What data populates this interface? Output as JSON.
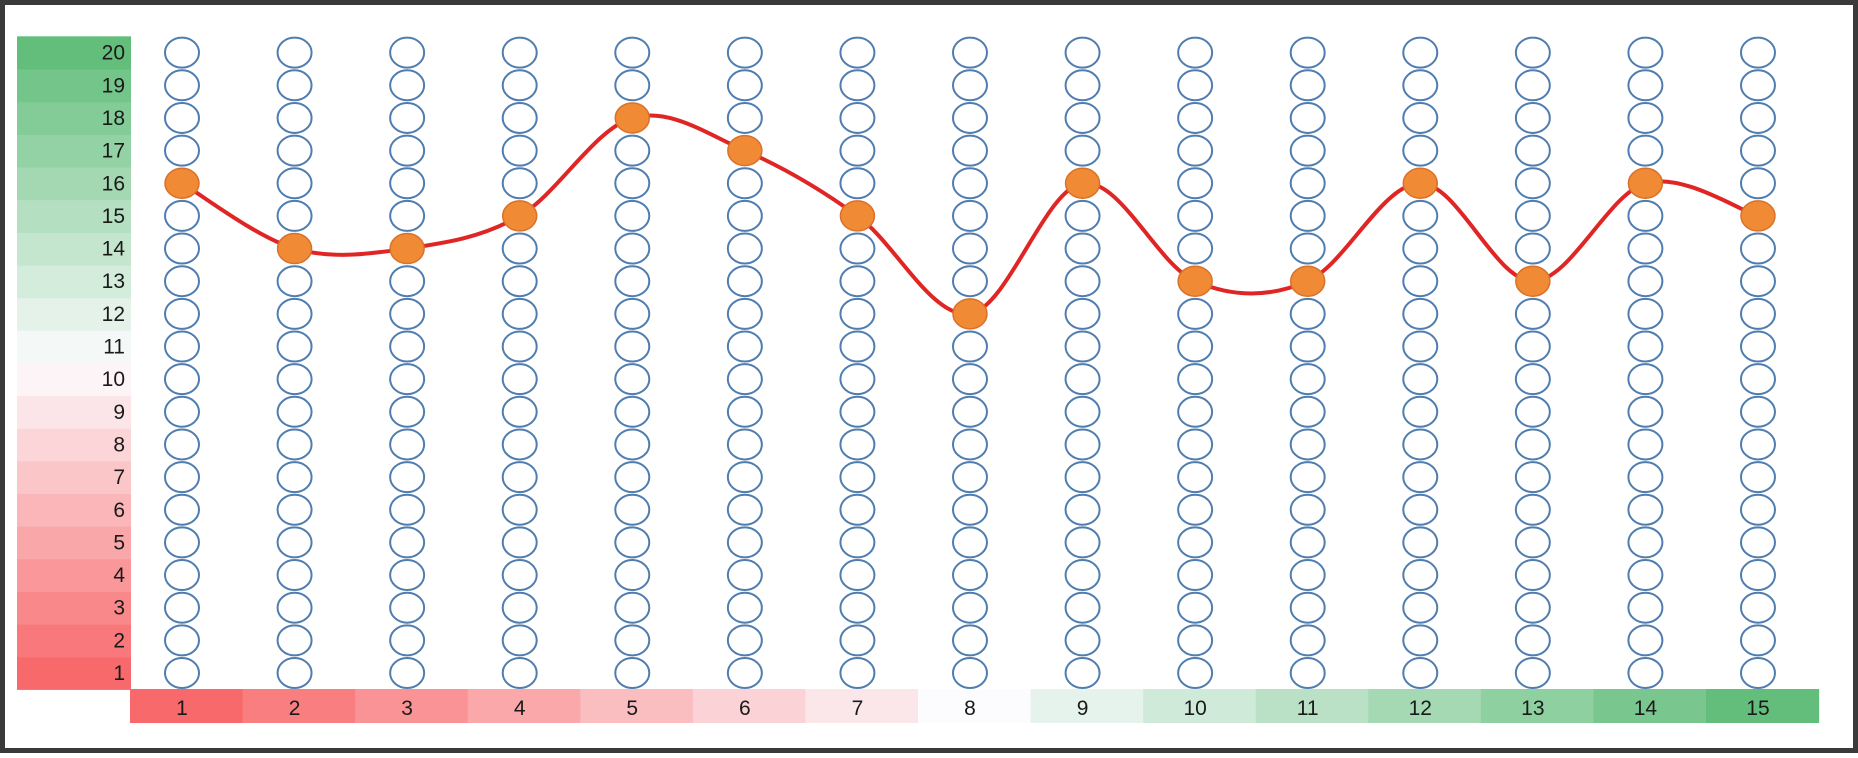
{
  "chart_data": {
    "type": "scatter",
    "title": "",
    "xlabel": "",
    "ylabel": "",
    "categories": [
      "1",
      "2",
      "3",
      "4",
      "5",
      "6",
      "7",
      "8",
      "9",
      "10",
      "11",
      "12",
      "13",
      "14",
      "15"
    ],
    "x": [
      1,
      2,
      3,
      4,
      5,
      6,
      7,
      8,
      9,
      10,
      11,
      12,
      13,
      14,
      15
    ],
    "values": [
      16,
      14,
      14,
      15,
      18,
      17,
      15,
      12,
      16,
      13,
      13,
      16,
      13,
      16,
      15
    ],
    "ylim": [
      1,
      20
    ],
    "y_ticks": [
      "1",
      "2",
      "3",
      "4",
      "5",
      "6",
      "7",
      "8",
      "9",
      "10",
      "11",
      "12",
      "13",
      "14",
      "15",
      "16",
      "17",
      "18",
      "19",
      "20"
    ],
    "grid": false,
    "legend": "none",
    "colors": {
      "marker": "#F08A35",
      "marker_stroke": "#D9712A",
      "line": "#E02525",
      "empty_circle": "#4F7DAF",
      "scale_low": "#F8696B",
      "scale_mid": "#FCFCFF",
      "scale_high": "#63BE7B"
    }
  }
}
